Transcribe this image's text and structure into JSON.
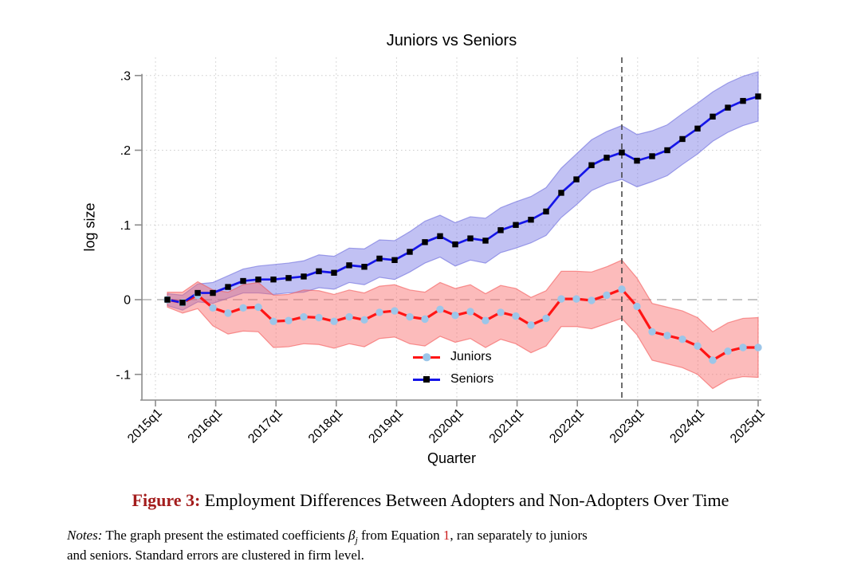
{
  "chart": {
    "title": "Juniors vs Seniors",
    "y_axis": {
      "label": "log size",
      "ticks": [
        {
          "label": ".3",
          "value": 0.3
        },
        {
          "label": ".2",
          "value": 0.2
        },
        {
          "label": ".1",
          "value": 0.1
        },
        {
          "label": "0",
          "value": 0.0
        },
        {
          "label": "-.1",
          "value": -0.1
        }
      ]
    },
    "x_axis": {
      "label": "Quarter",
      "ticks": [
        "2015q1",
        "2016q1",
        "2017q1",
        "2018q1",
        "2019q1",
        "2020q1",
        "2021q1",
        "2022q1",
        "2023q1",
        "2024q1",
        "2025q1"
      ]
    }
  },
  "chart_data": {
    "type": "line",
    "title": "Juniors vs Seniors",
    "xlabel": "Quarter",
    "ylabel": "log size",
    "ylim": [
      -0.13,
      0.32
    ],
    "grid": true,
    "legend_position": "lower-center",
    "zero_reference_line": 0,
    "event_line_at": "2022q4",
    "x": [
      "2015q2",
      "2015q3",
      "2015q4",
      "2016q1",
      "2016q2",
      "2016q3",
      "2016q4",
      "2017q1",
      "2017q2",
      "2017q3",
      "2017q4",
      "2018q1",
      "2018q2",
      "2018q3",
      "2018q4",
      "2019q1",
      "2019q2",
      "2019q3",
      "2019q4",
      "2020q1",
      "2020q2",
      "2020q3",
      "2020q4",
      "2021q1",
      "2021q2",
      "2021q3",
      "2021q4",
      "2022q1",
      "2022q2",
      "2022q3",
      "2022q4",
      "2023q1",
      "2023q2",
      "2023q3",
      "2023q4",
      "2024q1",
      "2024q2",
      "2024q3",
      "2024q4",
      "2025q1"
    ],
    "series": [
      {
        "name": "Juniors",
        "line_color": "#ff1414",
        "line_width": 3.2,
        "marker": "circle",
        "marker_color": "#9cc6e9",
        "band_fill": "rgba(248,105,105,0.45)",
        "band_edge": "rgba(243,85,85,0.60)",
        "values": [
          0.0,
          -0.004,
          0.006,
          -0.011,
          -0.018,
          -0.011,
          -0.01,
          -0.029,
          -0.028,
          -0.023,
          -0.024,
          -0.029,
          -0.023,
          -0.027,
          -0.017,
          -0.015,
          -0.023,
          -0.026,
          -0.013,
          -0.021,
          -0.016,
          -0.028,
          -0.017,
          -0.022,
          -0.034,
          -0.025,
          0.001,
          0.001,
          -0.001,
          0.006,
          0.014,
          -0.009,
          -0.043,
          -0.048,
          -0.053,
          -0.062,
          -0.081,
          -0.069,
          -0.064,
          -0.064
        ],
        "ci_halfwidth": [
          0.01,
          0.014,
          0.018,
          0.024,
          0.028,
          0.031,
          0.033,
          0.035,
          0.035,
          0.036,
          0.036,
          0.036,
          0.036,
          0.036,
          0.035,
          0.035,
          0.036,
          0.036,
          0.036,
          0.036,
          0.036,
          0.036,
          0.036,
          0.037,
          0.037,
          0.037,
          0.037,
          0.037,
          0.038,
          0.038,
          0.039,
          0.038,
          0.038,
          0.038,
          0.038,
          0.038,
          0.038,
          0.038,
          0.039,
          0.04
        ]
      },
      {
        "name": "Seniors",
        "line_color": "#1515e8",
        "line_width": 2.7,
        "marker": "square",
        "marker_color": "#000000",
        "band_fill": "rgba(108,108,226,0.42)",
        "band_edge": "rgba(105,105,220,0.60)",
        "values": [
          0.0,
          -0.004,
          0.009,
          0.009,
          0.017,
          0.025,
          0.027,
          0.027,
          0.029,
          0.031,
          0.038,
          0.036,
          0.046,
          0.044,
          0.055,
          0.053,
          0.064,
          0.077,
          0.085,
          0.074,
          0.082,
          0.079,
          0.093,
          0.1,
          0.107,
          0.118,
          0.143,
          0.161,
          0.18,
          0.19,
          0.197,
          0.186,
          0.192,
          0.2,
          0.215,
          0.229,
          0.245,
          0.257,
          0.266,
          0.272
        ],
        "ci_halfwidth": [
          0.008,
          0.01,
          0.012,
          0.014,
          0.015,
          0.016,
          0.018,
          0.02,
          0.02,
          0.021,
          0.022,
          0.022,
          0.023,
          0.024,
          0.025,
          0.026,
          0.027,
          0.028,
          0.028,
          0.029,
          0.029,
          0.03,
          0.03,
          0.031,
          0.031,
          0.032,
          0.033,
          0.034,
          0.034,
          0.035,
          0.036,
          0.035,
          0.034,
          0.034,
          0.034,
          0.034,
          0.033,
          0.033,
          0.033,
          0.033
        ]
      }
    ]
  },
  "caption": {
    "prefix": "Figure 3:",
    "text": " Employment Differences Between Adopters and Non-Adopters Over Time"
  },
  "notes": {
    "prefix": "Notes:",
    "line1_a": " The graph present the estimated coefficients ",
    "beta": "β",
    "beta_sub": "j",
    "line1_b": " from Equation ",
    "equation_ref": "1",
    "line1_c": ", ran separately to juniors",
    "line2": "and seniors. Standard errors are clustered in firm level."
  },
  "colors": {
    "juniors_line": "#ff1414",
    "juniors_marker": "#9cc6e9",
    "seniors_line": "#1515e8",
    "seniors_marker": "#000000",
    "event_line": "#3f3f3f",
    "caption_label": "#a31c1c",
    "equation_ref": "#cc1f1f"
  }
}
